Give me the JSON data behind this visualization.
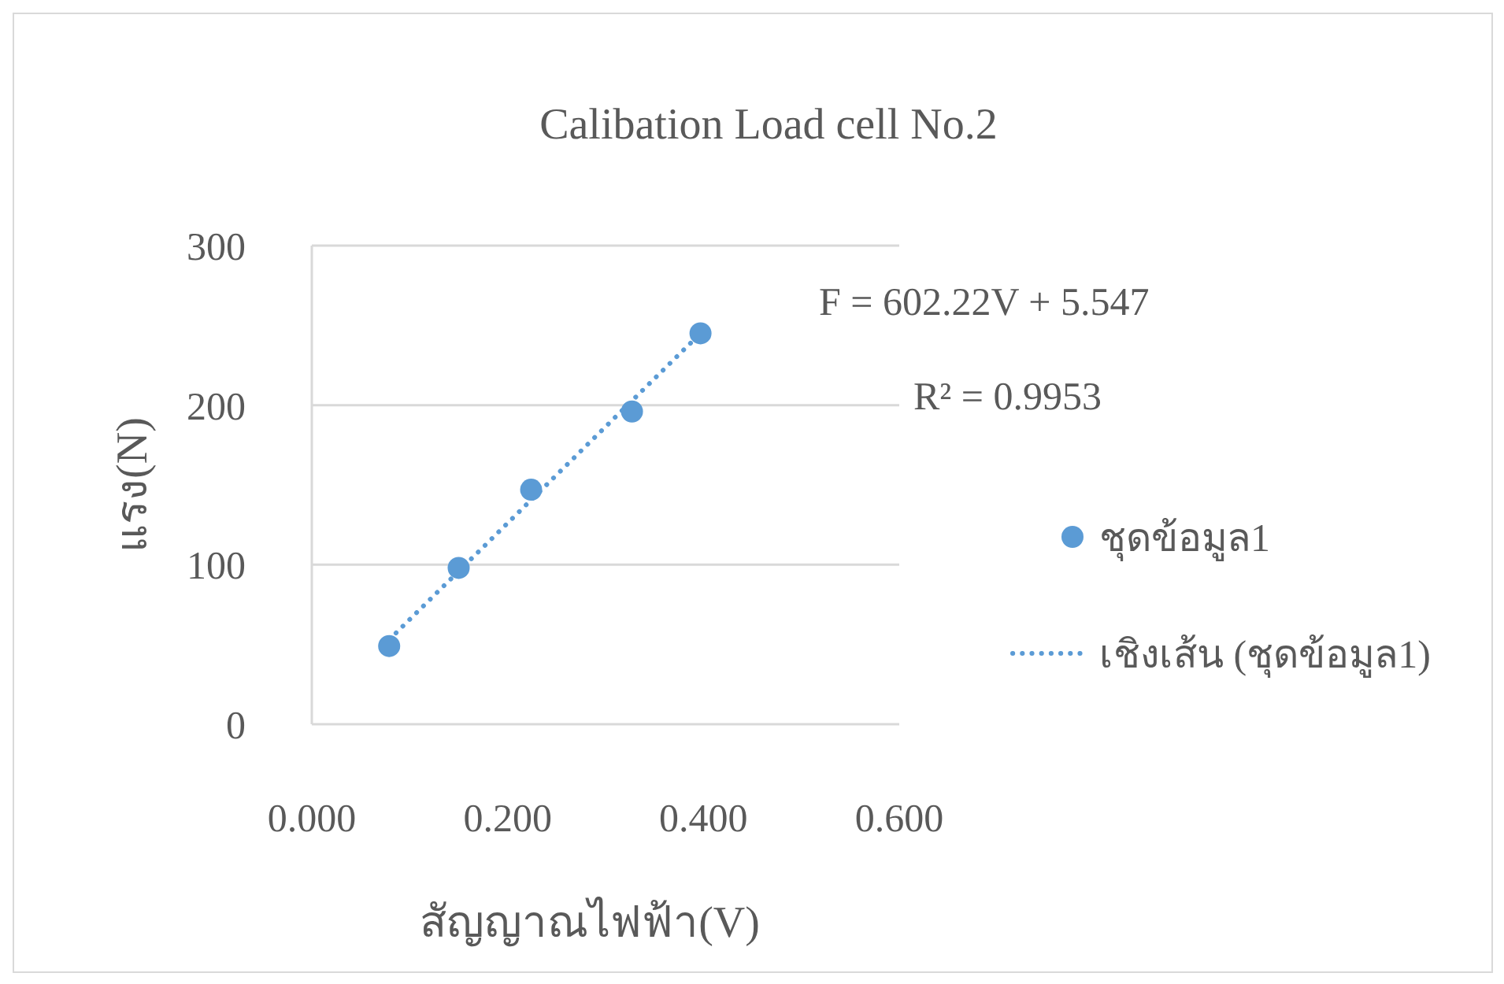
{
  "chart_data": {
    "type": "scatter",
    "title": "Calibation Load cell No.2",
    "xlabel": "สัญญาณไฟฟ้า(V)",
    "ylabel": "แรง(N)",
    "xlim": [
      0,
      0.6
    ],
    "xticks": [
      {
        "value": 0,
        "label": "0.000"
      },
      {
        "value": 0.2,
        "label": "0.200"
      },
      {
        "value": 0.4,
        "label": "0.400"
      },
      {
        "value": 0.6,
        "label": "0.600"
      }
    ],
    "ylim": [
      0,
      300
    ],
    "yticks": [
      0,
      100,
      200,
      300
    ],
    "grid": "y",
    "legend": "right",
    "annotations": [
      "F = 602.22V + 5.547",
      "R² = 0.9953"
    ],
    "series": [
      {
        "name": "ชุดข้อมูล1",
        "marker": "circle",
        "color": "#5b9bd5",
        "x": [
          0.079,
          0.15,
          0.224,
          0.327,
          0.397
        ],
        "values": [
          49,
          98,
          147,
          196,
          245
        ]
      },
      {
        "name": "เชิงเส้น (ชุดข้อมูล1)",
        "type": "line",
        "line_style": "dotted",
        "color": "#5b9bd5",
        "x": [
          0.079,
          0.397
        ],
        "values": [
          53,
          245
        ]
      }
    ]
  }
}
